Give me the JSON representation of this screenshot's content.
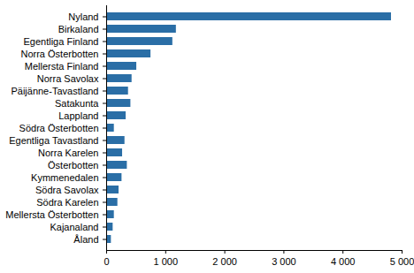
{
  "chart_data": {
    "type": "bar",
    "orientation": "horizontal",
    "categories": [
      "Nyland",
      "Birkaland",
      "Egentliga Finland",
      "Norra Österbotten",
      "Mellersta Finland",
      "Norra Savolax",
      "Päijänne-Tavastland",
      "Satakunta",
      "Lappland",
      "Södra Österbotten",
      "Egentliga Tavastland",
      "Norra Karelen",
      "Österbotten",
      "Kymmenedalen",
      "Södra Savolax",
      "Södra Karelen",
      "Mellersta Österbotten",
      "Kajanaland",
      "Åland"
    ],
    "values": [
      4820,
      1180,
      1120,
      750,
      510,
      430,
      370,
      410,
      330,
      130,
      310,
      270,
      350,
      260,
      210,
      190,
      130,
      110,
      80
    ],
    "color": "#2a6ea6",
    "xlim": [
      0,
      5000
    ],
    "xticks": [
      0,
      {
        "value": 1000,
        "label": "1 000"
      },
      {
        "value": 2000,
        "label": "2 000"
      },
      {
        "value": 3000,
        "label": "3 000"
      },
      {
        "value": 4000,
        "label": "4 000"
      },
      {
        "value": 5000,
        "label": "5 000"
      }
    ],
    "grid": false
  }
}
